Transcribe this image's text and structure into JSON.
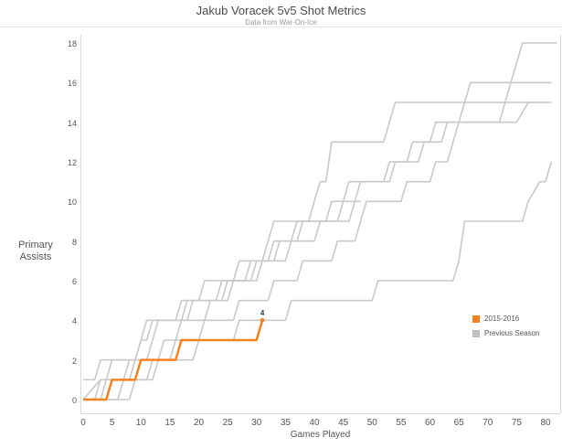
{
  "title": "Jakub Voracek 5v5 Shot Metrics",
  "subtitle": "Data from War-On-Ice",
  "colors": {
    "current_season": "#F5821F",
    "previous_season": "#C9C9C9",
    "axis_line": "#D9D9D9",
    "tick_text": "#555555",
    "annotation": "#24384F"
  },
  "y_axis": {
    "label_line1": "Primary",
    "label_line2": "Assists",
    "ticks": [
      0,
      2,
      4,
      6,
      8,
      10,
      12,
      14,
      16,
      18
    ],
    "range": [
      0,
      18
    ]
  },
  "x_axis": {
    "label": "Games Played",
    "ticks": [
      0,
      5,
      10,
      15,
      20,
      25,
      30,
      35,
      40,
      45,
      50,
      55,
      60,
      65,
      70,
      75,
      80
    ],
    "range": [
      0,
      80
    ]
  },
  "legend": {
    "items": [
      {
        "label": "2015-2016",
        "color": "#F5821F"
      },
      {
        "label": "Previous Season",
        "color": "#BFBFBF"
      }
    ]
  },
  "annotation": {
    "text": "4",
    "game": 31,
    "value": 4
  },
  "chart_data": {
    "type": "line",
    "title": "Jakub Voracek 5v5 Shot Metrics",
    "subtitle": "Data from War-On-Ice",
    "xlabel": "Games Played",
    "ylabel": "Primary Assists",
    "xlim": [
      0,
      83
    ],
    "ylim": [
      0,
      18
    ],
    "grid": false,
    "legend_position": "right-middle",
    "series": [
      {
        "name": "2015-2016",
        "role": "current",
        "end_label": "4",
        "points": [
          [
            0,
            0
          ],
          [
            4,
            0
          ],
          [
            5,
            1
          ],
          [
            9,
            1
          ],
          [
            10,
            2
          ],
          [
            16,
            2
          ],
          [
            17,
            3
          ],
          [
            30,
            3
          ],
          [
            31,
            4
          ]
        ]
      },
      {
        "name": "Previous Season A",
        "role": "previous",
        "points": [
          [
            0,
            0
          ],
          [
            2,
            0
          ],
          [
            3,
            1
          ],
          [
            7,
            1
          ],
          [
            8,
            2
          ],
          [
            11,
            2
          ],
          [
            12,
            3
          ],
          [
            13,
            4
          ],
          [
            17,
            4
          ],
          [
            18,
            5
          ],
          [
            24,
            5
          ],
          [
            25,
            6
          ],
          [
            28,
            6
          ],
          [
            29,
            7
          ],
          [
            33,
            7
          ],
          [
            34,
            8
          ],
          [
            37,
            8
          ],
          [
            38,
            9
          ],
          [
            44,
            9
          ],
          [
            45,
            10
          ],
          [
            46,
            11
          ],
          [
            52,
            11
          ],
          [
            53,
            12
          ],
          [
            56,
            12
          ],
          [
            57,
            13
          ],
          [
            60,
            13
          ],
          [
            61,
            14
          ],
          [
            72,
            14
          ],
          [
            73,
            15
          ],
          [
            74,
            16
          ],
          [
            75,
            17
          ],
          [
            76,
            18
          ],
          [
            82,
            18
          ]
        ]
      },
      {
        "name": "Previous Season B",
        "role": "previous",
        "points": [
          [
            0,
            0
          ],
          [
            3,
            1
          ],
          [
            4,
            1
          ],
          [
            5,
            2
          ],
          [
            9,
            2
          ],
          [
            10,
            3
          ],
          [
            11,
            4
          ],
          [
            16,
            4
          ],
          [
            17,
            5
          ],
          [
            20,
            5
          ],
          [
            21,
            6
          ],
          [
            26,
            6
          ],
          [
            27,
            7
          ],
          [
            32,
            7
          ],
          [
            33,
            8
          ],
          [
            36,
            8
          ],
          [
            37,
            9
          ],
          [
            42,
            9
          ],
          [
            43,
            10
          ],
          [
            47,
            10
          ],
          [
            48,
            11
          ],
          [
            53,
            11
          ],
          [
            54,
            12
          ],
          [
            58,
            12
          ],
          [
            59,
            13
          ],
          [
            62,
            13
          ],
          [
            63,
            14
          ],
          [
            65,
            14
          ],
          [
            66,
            15
          ],
          [
            67,
            16
          ],
          [
            81,
            16
          ]
        ]
      },
      {
        "name": "Previous Season C",
        "role": "previous",
        "points": [
          [
            0,
            0
          ],
          [
            3,
            0
          ],
          [
            4,
            1
          ],
          [
            8,
            1
          ],
          [
            9,
            2
          ],
          [
            13,
            2
          ],
          [
            14,
            3
          ],
          [
            16,
            3
          ],
          [
            17,
            4
          ],
          [
            21,
            4
          ],
          [
            22,
            5
          ],
          [
            25,
            5
          ],
          [
            26,
            6
          ],
          [
            30,
            6
          ],
          [
            31,
            7
          ],
          [
            32,
            8
          ],
          [
            33,
            9
          ],
          [
            39,
            9
          ],
          [
            40,
            10
          ],
          [
            41,
            11
          ],
          [
            42,
            11
          ],
          [
            43,
            13
          ],
          [
            52,
            13
          ],
          [
            54,
            15
          ],
          [
            80,
            15
          ]
        ]
      },
      {
        "name": "Previous Season D",
        "role": "previous",
        "points": [
          [
            0,
            0
          ],
          [
            6,
            0
          ],
          [
            7,
            1
          ],
          [
            11,
            1
          ],
          [
            12,
            2
          ],
          [
            15,
            2
          ],
          [
            16,
            3
          ],
          [
            20,
            3
          ],
          [
            21,
            4
          ],
          [
            26,
            4
          ],
          [
            27,
            5
          ],
          [
            32,
            5
          ],
          [
            33,
            6
          ],
          [
            37,
            6
          ],
          [
            38,
            7
          ],
          [
            43,
            7
          ],
          [
            44,
            8
          ],
          [
            47,
            8
          ],
          [
            48,
            9
          ],
          [
            49,
            10
          ],
          [
            55,
            10
          ],
          [
            56,
            11
          ],
          [
            60,
            11
          ],
          [
            61,
            12
          ],
          [
            63,
            12
          ],
          [
            64,
            13
          ],
          [
            65,
            14
          ],
          [
            75,
            14
          ],
          [
            77,
            15
          ],
          [
            81,
            15
          ]
        ]
      },
      {
        "name": "Previous Season E",
        "role": "previous",
        "points": [
          [
            0,
            0
          ],
          [
            8,
            0
          ],
          [
            9,
            1
          ],
          [
            12,
            1
          ],
          [
            13,
            2
          ],
          [
            19,
            2
          ],
          [
            20,
            3
          ],
          [
            26,
            3
          ],
          [
            27,
            4
          ],
          [
            35,
            4
          ],
          [
            36,
            5
          ],
          [
            50,
            5
          ],
          [
            51,
            6
          ],
          [
            64,
            6
          ],
          [
            65,
            7
          ],
          [
            66,
            9
          ],
          [
            76,
            9
          ],
          [
            77,
            10
          ],
          [
            79,
            11
          ],
          [
            80,
            11
          ],
          [
            81,
            12
          ]
        ]
      },
      {
        "name": "Previous Season F",
        "role": "previous",
        "points": [
          [
            0,
            1
          ],
          [
            2,
            1
          ],
          [
            3,
            2
          ],
          [
            9,
            2
          ],
          [
            10,
            3
          ],
          [
            11,
            3
          ],
          [
            12,
            4
          ],
          [
            18,
            4
          ],
          [
            19,
            5
          ],
          [
            23,
            5
          ],
          [
            24,
            6
          ],
          [
            29,
            6
          ],
          [
            30,
            7
          ],
          [
            35,
            7
          ],
          [
            36,
            8
          ],
          [
            40,
            8
          ],
          [
            41,
            9
          ],
          [
            46,
            9
          ],
          [
            47,
            10
          ],
          [
            48,
            10
          ]
        ]
      }
    ]
  }
}
